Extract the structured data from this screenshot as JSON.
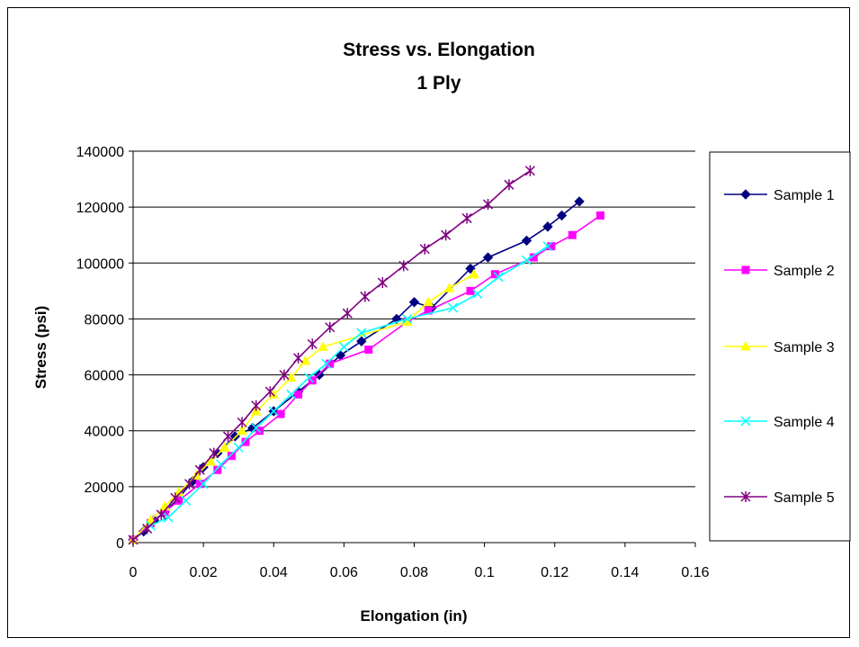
{
  "chart_data": {
    "type": "line",
    "title": "Stress vs. Elongation",
    "subtitle": "1 Ply",
    "xlabel": "Elongation (in)",
    "ylabel": "Stress (psi)",
    "xlim": [
      0,
      0.16
    ],
    "ylim": [
      0,
      140000
    ],
    "x_ticks": [
      "0",
      "0.02",
      "0.04",
      "0.06",
      "0.08",
      "0.1",
      "0.12",
      "0.14",
      "0.16"
    ],
    "y_ticks": [
      "0",
      "20000",
      "40000",
      "60000",
      "80000",
      "100000",
      "120000",
      "140000"
    ],
    "grid": "horizontal",
    "legend_position": "right",
    "series": [
      {
        "name": "Sample 1",
        "color": "#000080",
        "marker": "diamond",
        "x": [
          0.0,
          0.003,
          0.006,
          0.009,
          0.013,
          0.017,
          0.02,
          0.024,
          0.029,
          0.034,
          0.04,
          0.047,
          0.053,
          0.059,
          0.065,
          0.075,
          0.08,
          0.085,
          0.096,
          0.101,
          0.112,
          0.118,
          0.122,
          0.127
        ],
        "y": [
          1000,
          4000,
          8000,
          11000,
          16000,
          22000,
          27000,
          32000,
          38000,
          41000,
          47000,
          54000,
          60000,
          67000,
          72000,
          80000,
          86000,
          84000,
          98000,
          102000,
          108000,
          113000,
          117000,
          122000
        ]
      },
      {
        "name": "Sample 2",
        "color": "#ff00ff",
        "marker": "square",
        "x": [
          0.0,
          0.005,
          0.009,
          0.013,
          0.019,
          0.024,
          0.028,
          0.032,
          0.036,
          0.042,
          0.047,
          0.051,
          0.056,
          0.067,
          0.078,
          0.084,
          0.096,
          0.103,
          0.114,
          0.119,
          0.125,
          0.133
        ],
        "y": [
          1000,
          7000,
          11000,
          15000,
          21000,
          26000,
          31000,
          36000,
          40000,
          46000,
          53000,
          58000,
          64000,
          69000,
          79000,
          83000,
          90000,
          96000,
          102000,
          106000,
          110000,
          117000
        ]
      },
      {
        "name": "Sample 3",
        "color": "#ffff00",
        "marker": "triangle",
        "x": [
          0.0,
          0.005,
          0.009,
          0.013,
          0.018,
          0.022,
          0.026,
          0.031,
          0.035,
          0.04,
          0.045,
          0.049,
          0.054,
          0.078,
          0.084,
          0.09,
          0.097
        ],
        "y": [
          1000,
          8000,
          13000,
          18000,
          24000,
          29000,
          34000,
          40000,
          47000,
          53000,
          59000,
          65000,
          70000,
          79000,
          86000,
          91000,
          96000
        ]
      },
      {
        "name": "Sample 4",
        "color": "#00ffff",
        "marker": "x",
        "x": [
          0.0,
          0.005,
          0.01,
          0.015,
          0.02,
          0.025,
          0.03,
          0.035,
          0.04,
          0.045,
          0.05,
          0.055,
          0.06,
          0.065,
          0.078,
          0.091,
          0.098,
          0.104,
          0.112,
          0.118
        ],
        "y": [
          1000,
          6000,
          9000,
          15000,
          21000,
          28000,
          34000,
          41000,
          47000,
          53000,
          59000,
          64000,
          70000,
          75000,
          80000,
          84000,
          89000,
          95000,
          101000,
          106000
        ]
      },
      {
        "name": "Sample 5",
        "color": "#800080",
        "marker": "star",
        "x": [
          0.0,
          0.004,
          0.008,
          0.012,
          0.016,
          0.019,
          0.023,
          0.027,
          0.031,
          0.035,
          0.039,
          0.043,
          0.047,
          0.051,
          0.056,
          0.061,
          0.066,
          0.071,
          0.077,
          0.083,
          0.089,
          0.095,
          0.101,
          0.107,
          0.113
        ],
        "y": [
          1000,
          5000,
          10000,
          16000,
          21000,
          26000,
          32000,
          38000,
          43000,
          49000,
          54000,
          60000,
          66000,
          71000,
          77000,
          82000,
          88000,
          93000,
          99000,
          105000,
          110000,
          116000,
          121000,
          128000,
          133000
        ]
      }
    ]
  }
}
